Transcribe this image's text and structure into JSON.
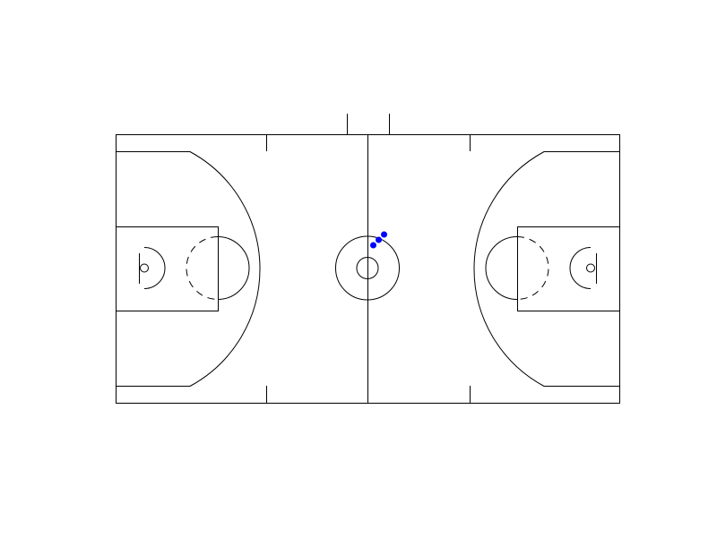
{
  "court": {
    "type": "basketball-full-court",
    "length_m": 28,
    "width_m": 15,
    "line_color": "#000000",
    "background_color": "#ffffff"
  },
  "chart_data": {
    "type": "scatter",
    "series": [
      {
        "marker_color": "#0000ff",
        "points": [
          {
            "x": 14.3,
            "y": 8.8
          },
          {
            "x": 14.6,
            "y": 9.1
          },
          {
            "x": 14.9,
            "y": 9.4
          }
        ]
      }
    ],
    "xlim": [
      0,
      28
    ],
    "ylim": [
      0,
      15
    ]
  }
}
